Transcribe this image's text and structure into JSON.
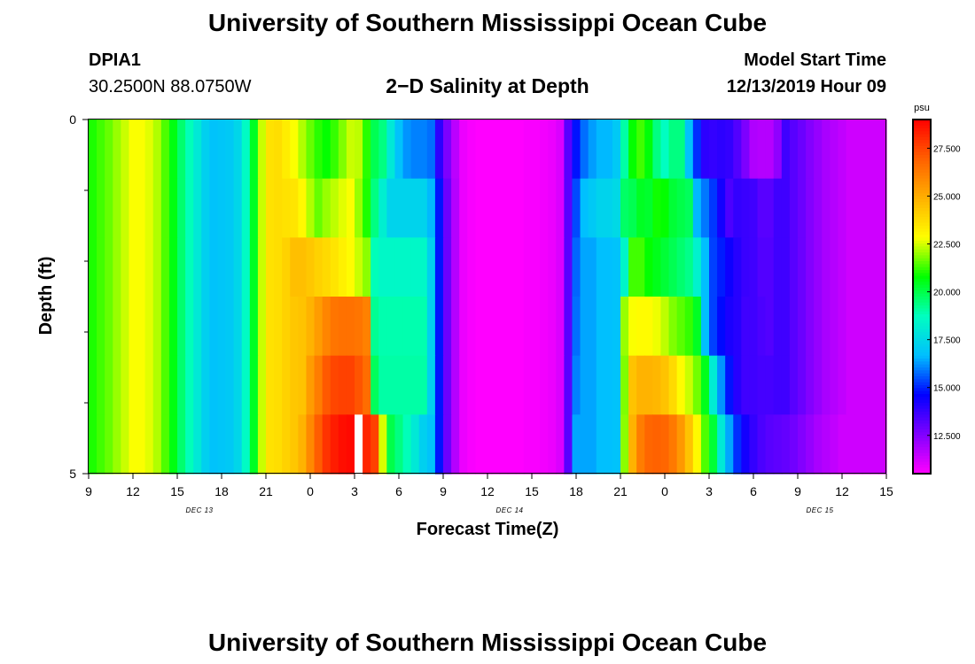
{
  "page": {
    "title_top": "University of Southern Mississippi Ocean Cube",
    "title_bottom": "University of Southern Mississippi Ocean Cube",
    "station_id": "DPIA1",
    "station_coords": "30.2500N 88.0750W",
    "plot_title": "2−D Salinity at Depth",
    "model_start_label": "Model Start Time",
    "model_start_value": "12/13/2019 Hour 09"
  },
  "colors": {
    "colormap": [
      "#ff00ff",
      "#8000ff",
      "#0000ff",
      "#00bfff",
      "#00ffc0",
      "#00ff00",
      "#ffff00",
      "#ffb000",
      "#ff6000",
      "#ff0000"
    ],
    "missing": "#ffffff",
    "frame": "#000000"
  },
  "chart_data": {
    "type": "heatmap",
    "title": "2−D Salinity at Depth",
    "xlabel": "Forecast Time(Z)",
    "ylabel": "Depth (ft)",
    "x_start": "2019-12-13 09Z",
    "x_end": "2019-12-15 15Z",
    "hours_per_column": 1,
    "x_tick_labels": [
      "9",
      "12",
      "15",
      "18",
      "21",
      "0",
      "3",
      "6",
      "9",
      "12",
      "15",
      "18",
      "21",
      "0",
      "3",
      "6",
      "9",
      "12",
      "15"
    ],
    "date_labels": [
      "DEC 13",
      "DEC 14",
      "DEC 15"
    ],
    "y_tick_labels": [
      "0",
      "5"
    ],
    "ylim": [
      0,
      5
    ],
    "depth_levels_ft": [
      0,
      1,
      2,
      3,
      4,
      5
    ],
    "colorbar": {
      "unit": "psu",
      "range": [
        10.5,
        29.0
      ],
      "tick_labels": [
        "12.500",
        "15.000",
        "17.500",
        "20.000",
        "22.500",
        "25.000",
        "27.500"
      ],
      "tick_values": [
        12.5,
        15.0,
        17.5,
        20.0,
        22.5,
        25.0,
        27.5
      ]
    },
    "salinity_psu": [
      [
        21.0,
        21.3,
        21.6,
        22.0,
        22.4,
        22.8,
        22.8,
        22.6,
        22.2,
        21.4,
        20.6,
        19.6,
        18.8,
        18.0,
        17.2,
        16.8,
        16.9,
        17.0,
        17.4,
        18.6,
        20.4,
        22.4,
        23.6,
        23.7,
        23.3,
        22.8,
        22.2,
        21.6,
        21.1,
        20.8,
        21.2,
        21.8,
        22.4,
        22.3,
        21.1,
        19.9,
        19.4,
        18.0,
        16.8,
        16.2,
        16.0,
        16.0,
        15.8,
        13.9,
        12.6,
        11.6,
        10.8,
        10.6,
        10.5,
        10.5,
        10.5,
        10.5,
        10.5,
        10.5,
        10.6,
        10.6,
        10.7,
        10.8,
        11.1,
        13.2,
        14.8,
        15.8,
        16.3,
        16.6,
        16.6,
        17.0,
        19.0,
        20.8,
        21.3,
        20.7,
        19.4,
        18.7,
        19.4,
        19.4,
        16.8,
        15.1,
        13.9,
        13.8,
        13.9,
        13.8,
        13.3,
        12.6,
        11.8,
        11.7,
        11.7,
        12.3,
        13.6,
        13.2,
        12.9,
        12.5,
        12.2,
        11.9,
        11.7,
        11.5,
        11.3,
        11.3,
        11.3,
        11.3,
        11.3
      ],
      [
        21.0,
        21.3,
        21.6,
        22.0,
        22.4,
        22.8,
        22.8,
        22.6,
        22.2,
        21.4,
        20.6,
        19.6,
        18.8,
        18.0,
        17.2,
        16.8,
        16.9,
        17.0,
        17.4,
        18.6,
        20.4,
        22.4,
        23.6,
        23.7,
        23.6,
        23.5,
        23.0,
        22.2,
        21.6,
        22.0,
        22.3,
        22.6,
        22.8,
        22.0,
        21.0,
        19.4,
        18.2,
        17.3,
        17.3,
        17.3,
        17.3,
        17.3,
        16.6,
        14.8,
        12.9,
        11.7,
        10.8,
        10.6,
        10.5,
        10.5,
        10.5,
        10.5,
        10.5,
        10.5,
        10.6,
        10.6,
        10.7,
        10.8,
        11.1,
        13.2,
        15.4,
        16.7,
        17.0,
        17.3,
        17.3,
        17.5,
        19.7,
        19.9,
        20.4,
        20.3,
        20.9,
        20.8,
        20.2,
        20.0,
        19.8,
        16.6,
        15.9,
        15.2,
        14.3,
        13.4,
        13.8,
        13.7,
        13.6,
        13.2,
        13.2,
        13.6,
        13.6,
        13.2,
        12.9,
        12.5,
        12.2,
        11.9,
        11.7,
        11.5,
        11.3,
        11.3,
        11.3,
        11.3,
        11.3
      ],
      [
        21.0,
        21.3,
        21.6,
        22.0,
        22.4,
        22.8,
        22.8,
        22.6,
        22.2,
        21.4,
        20.6,
        19.6,
        18.8,
        18.0,
        17.2,
        16.8,
        16.9,
        17.0,
        17.4,
        18.6,
        20.4,
        22.4,
        23.6,
        23.7,
        24.0,
        24.5,
        24.5,
        24.3,
        24.0,
        23.8,
        23.5,
        23.2,
        22.9,
        22.4,
        21.9,
        18.8,
        18.5,
        18.5,
        18.5,
        18.5,
        18.5,
        18.5,
        17.2,
        14.8,
        12.9,
        11.7,
        10.8,
        10.6,
        10.5,
        10.5,
        10.5,
        10.5,
        10.5,
        10.5,
        10.6,
        10.6,
        10.7,
        10.8,
        11.1,
        13.2,
        15.7,
        16.4,
        16.4,
        16.7,
        16.7,
        16.8,
        18.4,
        21.3,
        21.3,
        20.8,
        20.5,
        20.2,
        19.9,
        19.6,
        19.3,
        18.3,
        16.7,
        15.3,
        14.9,
        14.4,
        14.0,
        13.7,
        13.6,
        13.3,
        13.3,
        13.6,
        13.6,
        13.2,
        12.9,
        12.5,
        12.2,
        11.9,
        11.7,
        11.5,
        11.3,
        11.3,
        11.3,
        11.3,
        11.3
      ],
      [
        21.0,
        21.3,
        21.6,
        22.0,
        22.4,
        22.8,
        22.8,
        22.6,
        22.2,
        21.4,
        20.6,
        19.6,
        18.8,
        18.0,
        17.2,
        16.8,
        16.9,
        17.0,
        17.4,
        18.6,
        20.4,
        22.4,
        23.6,
        23.7,
        24.0,
        24.3,
        24.4,
        24.8,
        25.4,
        26.0,
        26.4,
        26.5,
        26.5,
        26.4,
        26.1,
        19.2,
        18.9,
        18.9,
        18.9,
        18.9,
        18.9,
        18.9,
        17.2,
        14.8,
        12.9,
        11.7,
        10.8,
        10.6,
        10.5,
        10.5,
        10.5,
        10.5,
        10.5,
        10.5,
        10.6,
        10.6,
        10.7,
        10.8,
        11.1,
        13.2,
        15.8,
        16.4,
        16.4,
        16.7,
        16.7,
        16.8,
        22.0,
        22.8,
        22.9,
        22.9,
        22.7,
        22.3,
        21.8,
        21.5,
        21.2,
        20.4,
        16.7,
        15.3,
        14.7,
        14.2,
        14.0,
        13.6,
        13.6,
        13.4,
        13.3,
        13.6,
        13.6,
        13.2,
        12.9,
        12.5,
        12.2,
        11.9,
        11.7,
        11.5,
        11.3,
        11.3,
        11.3,
        11.3,
        11.3
      ],
      [
        21.0,
        21.3,
        21.6,
        22.0,
        22.4,
        22.8,
        22.8,
        22.6,
        22.2,
        21.4,
        20.6,
        19.6,
        18.8,
        18.0,
        17.2,
        16.8,
        16.9,
        17.0,
        17.4,
        18.6,
        20.4,
        22.4,
        23.6,
        23.7,
        24.0,
        24.3,
        24.4,
        25.4,
        26.2,
        27.1,
        27.5,
        27.6,
        27.6,
        27.2,
        26.6,
        19.8,
        19.0,
        19.0,
        19.0,
        19.0,
        19.0,
        19.0,
        17.2,
        14.8,
        12.9,
        11.7,
        10.8,
        10.6,
        10.5,
        10.5,
        10.5,
        10.5,
        10.5,
        10.5,
        10.6,
        10.6,
        10.7,
        10.8,
        11.1,
        13.2,
        16.0,
        16.4,
        16.4,
        16.7,
        16.7,
        16.8,
        21.8,
        24.4,
        24.8,
        24.8,
        24.7,
        24.4,
        23.8,
        22.9,
        22.4,
        21.7,
        20.5,
        18.1,
        16.2,
        14.8,
        14.0,
        13.6,
        13.6,
        13.5,
        13.5,
        13.6,
        13.6,
        13.2,
        12.9,
        12.5,
        12.2,
        11.9,
        11.7,
        11.5,
        11.3,
        11.3,
        11.3,
        11.3,
        11.3
      ],
      [
        21.0,
        21.3,
        21.6,
        22.0,
        22.4,
        22.8,
        22.8,
        22.6,
        22.2,
        21.4,
        20.6,
        19.6,
        18.8,
        18.0,
        17.2,
        16.8,
        16.9,
        17.0,
        17.4,
        18.6,
        20.4,
        22.4,
        23.6,
        23.7,
        24.0,
        24.3,
        24.8,
        25.9,
        27.0,
        27.9,
        28.4,
        28.7,
        28.8,
        null,
        28.2,
        27.6,
        22.5,
        20.0,
        19.4,
        18.8,
        18.0,
        17.2,
        16.8,
        14.8,
        12.9,
        11.7,
        10.8,
        10.6,
        10.5,
        10.5,
        10.5,
        10.5,
        10.5,
        10.5,
        10.6,
        10.6,
        10.7,
        10.8,
        11.1,
        13.2,
        16.4,
        16.4,
        16.4,
        16.7,
        16.7,
        16.8,
        21.9,
        24.8,
        26.2,
        26.8,
        26.9,
        26.8,
        26.3,
        25.5,
        24.4,
        23.0,
        21.4,
        20.2,
        18.0,
        16.4,
        15.1,
        14.3,
        13.8,
        13.4,
        13.2,
        13.1,
        13.0,
        12.8,
        12.5,
        12.2,
        11.9,
        11.7,
        11.5,
        11.3,
        11.3,
        11.3,
        11.3,
        11.3,
        11.3
      ]
    ]
  }
}
